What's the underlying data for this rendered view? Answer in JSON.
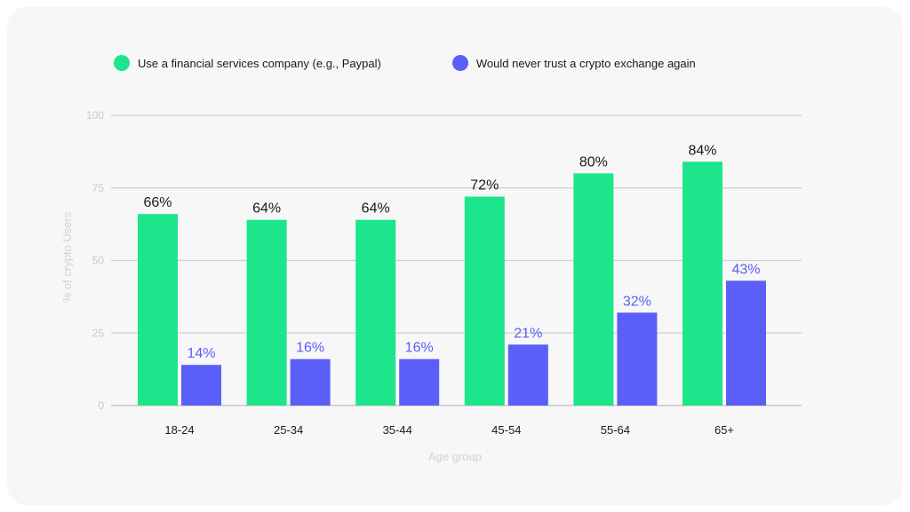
{
  "chart_data": {
    "type": "bar",
    "title": "",
    "xlabel": "Age group",
    "ylabel": "% of crypto Users",
    "ylim": [
      0,
      100
    ],
    "yticks": [
      "0",
      "25",
      "50",
      "75",
      "100"
    ],
    "grid": true,
    "legend_position": "top-left",
    "categories": [
      "18-24",
      "25-34",
      "35-44",
      "45-54",
      "55-64",
      "65+"
    ],
    "series": [
      {
        "name": "Use a financial services company (e.g., Paypal)",
        "color": "#1de58c",
        "label_color": "#1a1a1a",
        "values": [
          66,
          64,
          64,
          72,
          80,
          84
        ],
        "labels": [
          "66%",
          "64%",
          "64%",
          "72%",
          "80%",
          "84%"
        ]
      },
      {
        "name": "Would never trust a crypto exchange again",
        "color": "#5b5ef7",
        "label_color": "#5b5ef7",
        "values": [
          14,
          16,
          16,
          21,
          32,
          43
        ],
        "labels": [
          "14%",
          "16%",
          "16%",
          "21%",
          "32%",
          "43%"
        ]
      }
    ]
  }
}
